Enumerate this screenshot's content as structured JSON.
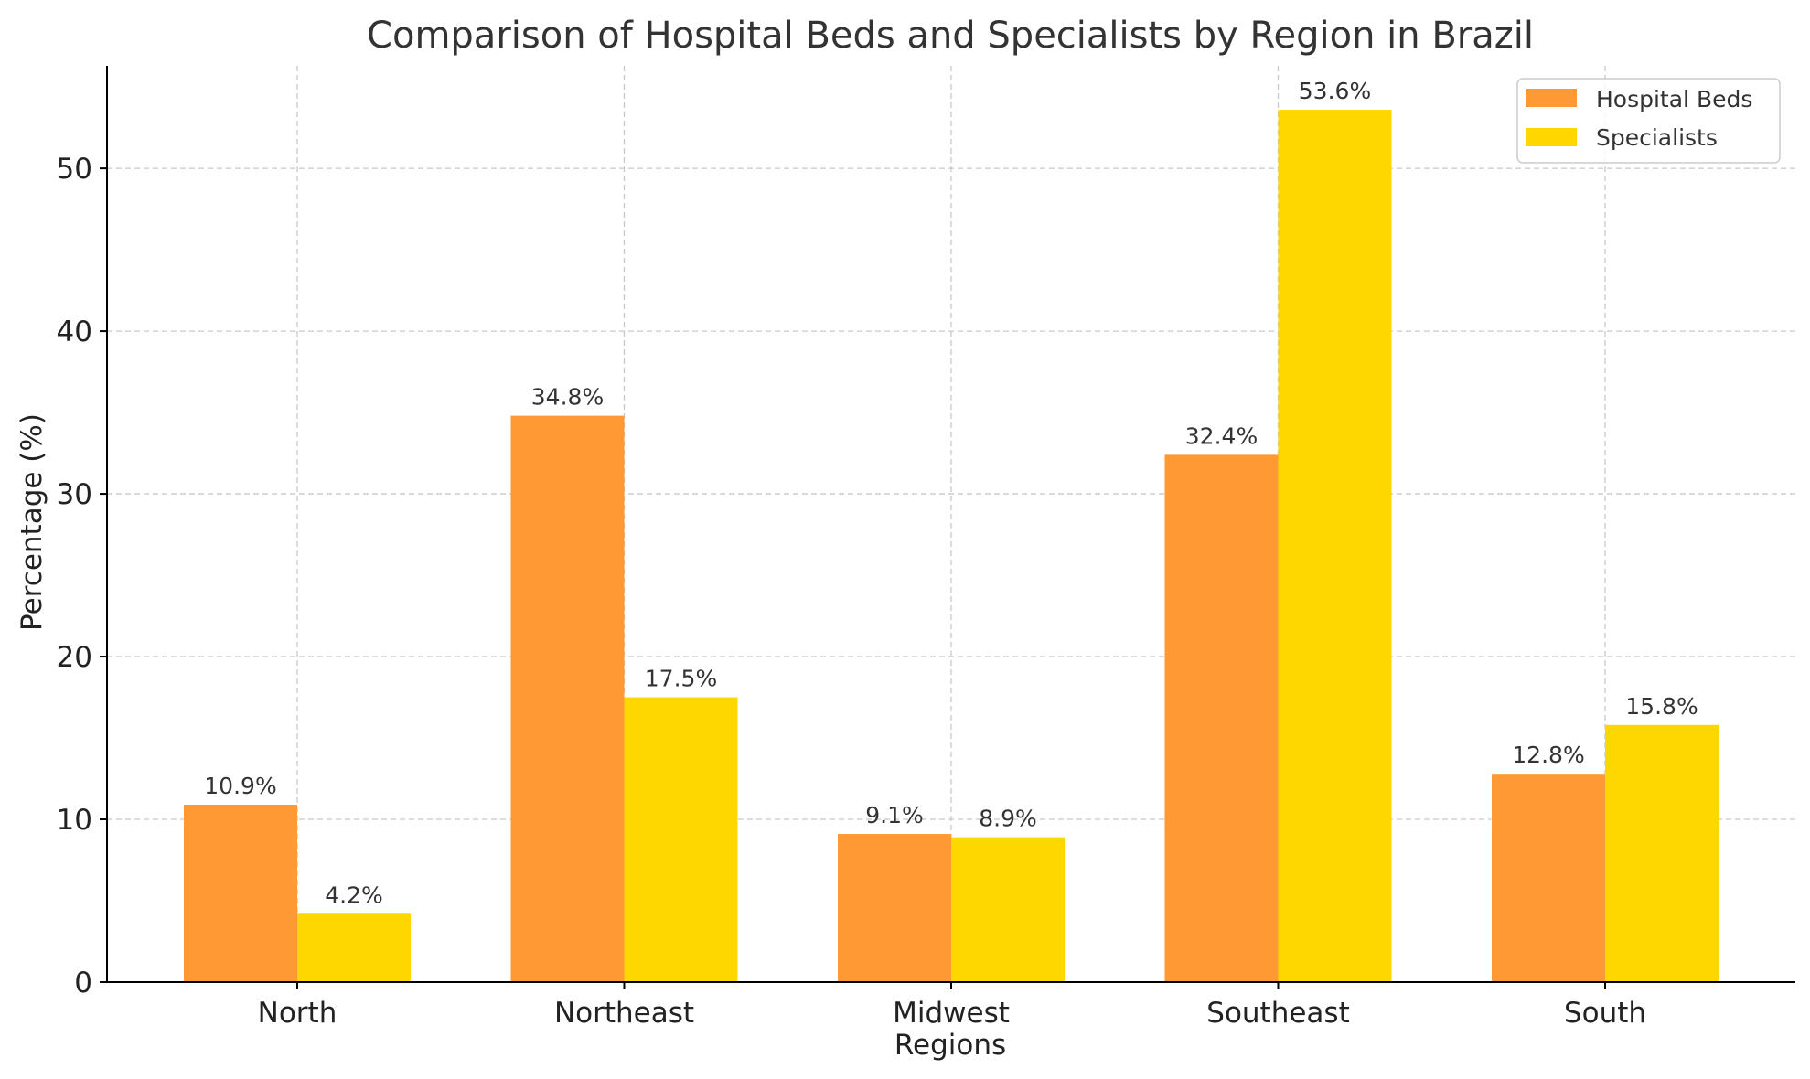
{
  "chart_data": {
    "type": "bar",
    "title": "Comparison of Hospital Beds and Specialists by Region in Brazil",
    "xlabel": "Regions",
    "ylabel": "Percentage (%)",
    "categories": [
      "North",
      "Northeast",
      "Midwest",
      "Southeast",
      "South"
    ],
    "series": [
      {
        "name": "Hospital Beds",
        "values": [
          10.9,
          34.8,
          9.1,
          32.4,
          12.8
        ],
        "labels": [
          "10.9%",
          "34.8%",
          "9.1%",
          "32.4%",
          "12.8%"
        ],
        "color": "#FF9933"
      },
      {
        "name": "Specialists",
        "values": [
          4.2,
          17.5,
          8.9,
          53.6,
          15.8
        ],
        "labels": [
          "4.2%",
          "17.5%",
          "8.9%",
          "53.6%",
          "15.8%"
        ],
        "color": "#FFD700"
      }
    ],
    "ylim": [
      0,
      56.3
    ],
    "yticks": [
      0,
      10,
      20,
      30,
      40,
      50
    ],
    "grid": true,
    "legend_position": "top-right"
  }
}
